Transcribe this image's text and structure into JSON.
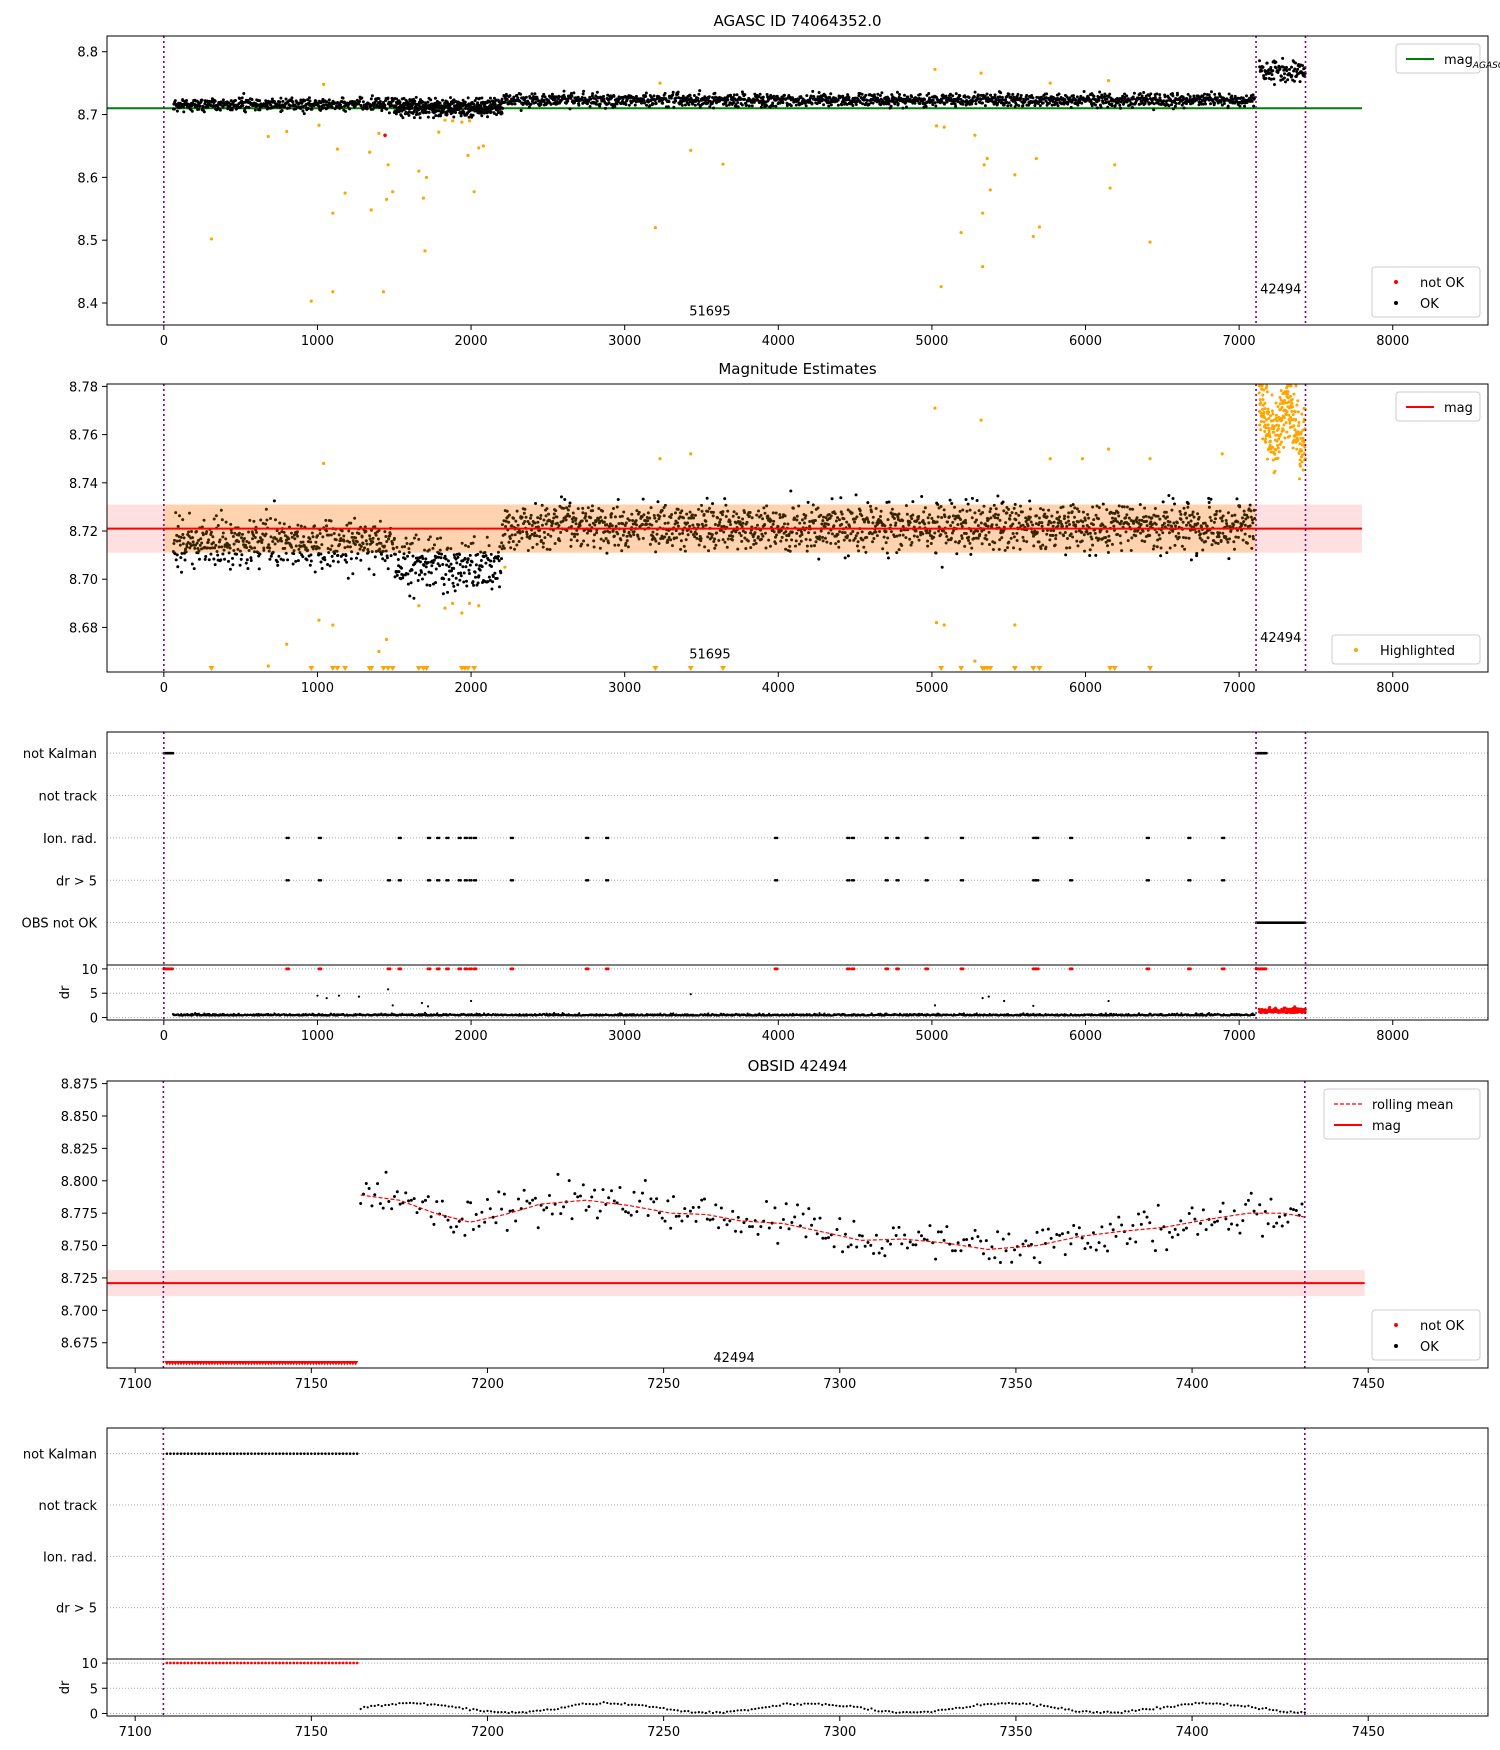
{
  "chart_data": [
    {
      "id": "p1",
      "type": "scatter",
      "title": "AGASC ID 74064352.0",
      "xlim": [
        -370,
        8620
      ],
      "ylim": [
        8.365,
        8.825
      ],
      "xticks": [
        0,
        1000,
        2000,
        3000,
        4000,
        5000,
        6000,
        7000,
        8000
      ],
      "yticks": [
        8.4,
        8.5,
        8.6,
        8.7,
        8.8
      ],
      "ytick_decimals": 1,
      "obs_boundaries": [
        0,
        7110,
        7432
      ],
      "obs_labels": [
        {
          "text": "51695",
          "x": 3555,
          "y": 8.38
        },
        {
          "text": "42494",
          "x": 7271,
          "y": 8.415
        }
      ],
      "mag_agasc": 8.71,
      "hline_xrange": [
        -370,
        7800
      ],
      "series": [
        {
          "name": "OK",
          "color": "#000000",
          "style": "dots"
        },
        {
          "name": "not OK",
          "color": "#ff0000",
          "style": "dots"
        }
      ],
      "highlighted_color": "#ffa500",
      "legends": [
        {
          "pos": "top-right",
          "items": [
            {
              "label": "mag",
              "sub": "AGASC",
              "kind": "line",
              "color": "#008000"
            }
          ]
        },
        {
          "pos": "bottom-right",
          "items": [
            {
              "label": "not OK",
              "kind": "dot",
              "color": "#ff0000"
            },
            {
              "label": "OK",
              "kind": "dot",
              "color": "#000000"
            }
          ]
        }
      ],
      "segments": [
        {
          "x0": 60,
          "x1": 2200,
          "mean": 8.716,
          "sd": 0.007
        },
        {
          "x0": 1500,
          "x1": 2200,
          "mean": 8.707,
          "sd": 0.007
        },
        {
          "x0": 2200,
          "x1": 7100,
          "mean": 8.723,
          "sd": 0.007
        },
        {
          "x0": 7130,
          "x1": 7432,
          "mean": 8.77,
          "sd": 0.012
        }
      ],
      "outliers": [
        [
          310,
          8.502
        ],
        [
          680,
          8.665
        ],
        [
          800,
          8.673
        ],
        [
          960,
          8.403
        ],
        [
          1010,
          8.683
        ],
        [
          1040,
          8.748
        ],
        [
          1100,
          8.418
        ],
        [
          1100,
          8.543
        ],
        [
          1130,
          8.645
        ],
        [
          1180,
          8.575
        ],
        [
          1340,
          8.64
        ],
        [
          1350,
          8.548
        ],
        [
          1400,
          8.67
        ],
        [
          1430,
          8.418
        ],
        [
          1450,
          8.565
        ],
        [
          1460,
          8.62
        ],
        [
          1490,
          8.577
        ],
        [
          1660,
          8.61
        ],
        [
          1690,
          8.567
        ],
        [
          1700,
          8.483
        ],
        [
          1710,
          8.6
        ],
        [
          1790,
          8.672
        ],
        [
          1830,
          8.691
        ],
        [
          1880,
          8.69
        ],
        [
          1940,
          8.688
        ],
        [
          1980,
          8.635
        ],
        [
          1990,
          8.69
        ],
        [
          2020,
          8.577
        ],
        [
          2050,
          8.647
        ],
        [
          2080,
          8.65
        ],
        [
          3200,
          8.52
        ],
        [
          3230,
          8.75
        ],
        [
          3430,
          8.643
        ],
        [
          3640,
          8.621
        ],
        [
          5020,
          8.772
        ],
        [
          5030,
          8.682
        ],
        [
          5060,
          8.426
        ],
        [
          5080,
          8.68
        ],
        [
          5190,
          8.512
        ],
        [
          5280,
          8.667
        ],
        [
          5320,
          8.766
        ],
        [
          5330,
          8.458
        ],
        [
          5330,
          8.543
        ],
        [
          5340,
          8.62
        ],
        [
          5360,
          8.63
        ],
        [
          5380,
          8.58
        ],
        [
          5540,
          8.604
        ],
        [
          5660,
          8.506
        ],
        [
          5680,
          8.63
        ],
        [
          5700,
          8.521
        ],
        [
          5770,
          8.75
        ],
        [
          6150,
          8.754
        ],
        [
          6160,
          8.583
        ],
        [
          6190,
          8.62
        ],
        [
          6420,
          8.497
        ]
      ],
      "notok_pts": [
        [
          1440,
          8.667
        ]
      ]
    },
    {
      "id": "p2",
      "type": "scatter",
      "title": "Magnitude Estimates",
      "xlim": [
        -370,
        8620
      ],
      "ylim": [
        8.6615,
        8.781
      ],
      "xticks": [
        0,
        1000,
        2000,
        3000,
        4000,
        5000,
        6000,
        7000,
        8000
      ],
      "yticks": [
        8.68,
        8.7,
        8.72,
        8.74,
        8.76,
        8.78
      ],
      "ytick_decimals": 2,
      "obs_boundaries": [
        0,
        7110,
        7432
      ],
      "obs_labels": [
        {
          "text": "51695",
          "x": 3555,
          "y": 8.667
        },
        {
          "text": "42494",
          "x": 7271,
          "y": 8.674
        }
      ],
      "mag": 8.721,
      "band_outer": [
        8.711,
        8.731
      ],
      "band_inner": [
        8.711,
        8.731
      ],
      "band_inner_xrange": [
        0,
        7110
      ],
      "hline_xrange": [
        -370,
        7800
      ],
      "series": [
        {
          "name": "OK",
          "color": "#000000",
          "style": "dots"
        }
      ],
      "highlighted_color": "#ffa500",
      "legends": [
        {
          "pos": "top-right",
          "items": [
            {
              "label": "mag",
              "kind": "line",
              "color": "#ff0000"
            }
          ]
        },
        {
          "pos": "bottom-right",
          "items": [
            {
              "label": "Highlighted",
              "kind": "dot",
              "color": "#ffa500"
            }
          ]
        }
      ],
      "segments": [
        {
          "x0": 60,
          "x1": 1500,
          "mean": 8.715,
          "sd": 0.007
        },
        {
          "x0": 1500,
          "x1": 2200,
          "mean": 8.706,
          "sd": 0.007
        },
        {
          "x0": 2200,
          "x1": 7100,
          "mean": 8.722,
          "sd": 0.007
        }
      ],
      "obs2_band": {
        "x0": 7130,
        "x1": 7432,
        "mean": 8.765,
        "sd": 0.01
      },
      "outliers": [
        [
          680,
          8.664
        ],
        [
          800,
          8.673
        ],
        [
          1010,
          8.683
        ],
        [
          1040,
          8.748
        ],
        [
          1100,
          8.681
        ],
        [
          1400,
          8.67
        ],
        [
          1450,
          8.675
        ],
        [
          1660,
          8.689
        ],
        [
          1830,
          8.688
        ],
        [
          1880,
          8.69
        ],
        [
          1940,
          8.686
        ],
        [
          1990,
          8.69
        ],
        [
          2050,
          8.689
        ],
        [
          2220,
          8.705
        ],
        [
          3230,
          8.75
        ],
        [
          3430,
          8.752
        ],
        [
          5020,
          8.771
        ],
        [
          5030,
          8.682
        ],
        [
          5080,
          8.681
        ],
        [
          5280,
          8.666
        ],
        [
          5320,
          8.766
        ],
        [
          5540,
          8.681
        ],
        [
          5770,
          8.75
        ],
        [
          5980,
          8.75
        ],
        [
          6150,
          8.754
        ],
        [
          6420,
          8.75
        ],
        [
          6890,
          8.752
        ]
      ],
      "lower_triangles": [
        310,
        960,
        1100,
        1130,
        1180,
        1340,
        1350,
        1430,
        1460,
        1490,
        1660,
        1690,
        1710,
        1940,
        1960,
        1980,
        2020,
        3200,
        3430,
        3640,
        5060,
        5190,
        5330,
        5340,
        5360,
        5380,
        5540,
        5660,
        5700,
        6160,
        6190,
        6420
      ]
    },
    {
      "id": "p3",
      "type": "scatter",
      "xlim": [
        -370,
        8620
      ],
      "xticks": [
        0,
        1000,
        2000,
        3000,
        4000,
        5000,
        6000,
        7000,
        8000
      ],
      "flag_labels": [
        "not Kalman",
        "not track",
        "Ion. rad.",
        "dr > 5",
        "OBS not OK"
      ],
      "dr_label": "dr",
      "dr_ylim": [
        -0.5,
        10.8
      ],
      "dr_yticks": [
        0,
        5,
        10
      ],
      "obs_boundaries": [
        0,
        7110,
        7432
      ],
      "flag_points": {
        "not Kalman": [
          [
            0,
            60
          ],
          [
            7110,
            7180
          ]
        ],
        "OBS not OK": [
          [
            7110,
            7432
          ]
        ]
      },
      "ion_rad_x": [
        800,
        1010,
        1530,
        1720,
        1780,
        1840,
        1920,
        1960,
        1990,
        2020,
        2260,
        2750,
        2880,
        3980,
        4450,
        4480,
        4700,
        4770,
        4960,
        5190,
        5660,
        5680,
        5900,
        6400,
        6670,
        6890
      ],
      "dr5_x": [
        800,
        1010,
        1460,
        1530,
        1720,
        1780,
        1840,
        1920,
        1960,
        1990,
        2020,
        2260,
        2750,
        2880,
        3980,
        4450,
        4480,
        4700,
        4770,
        4960,
        5190,
        5660,
        5680,
        5900,
        6400,
        6670,
        6890
      ],
      "dr_outliers": [
        [
          1000,
          4.5
        ],
        [
          1060,
          4.0
        ],
        [
          1140,
          4.5
        ],
        [
          1270,
          4.3
        ],
        [
          1460,
          5.8
        ],
        [
          1490,
          2.5
        ],
        [
          1680,
          3.0
        ],
        [
          1720,
          2.3
        ],
        [
          2000,
          3.4
        ],
        [
          3430,
          4.8
        ],
        [
          5020,
          2.5
        ],
        [
          5330,
          4.0
        ],
        [
          5370,
          4.3
        ],
        [
          5470,
          3.4
        ],
        [
          5660,
          2.4
        ],
        [
          6150,
          3.4
        ]
      ]
    },
    {
      "id": "p4",
      "type": "scatter",
      "title": "OBSID 42494",
      "xlim": [
        7092,
        7484
      ],
      "ylim": [
        8.6555,
        8.877
      ],
      "xticks": [
        7100,
        7150,
        7200,
        7250,
        7300,
        7350,
        7400,
        7450
      ],
      "yticks": [
        8.675,
        8.7,
        8.725,
        8.75,
        8.775,
        8.8,
        8.825,
        8.85,
        8.875
      ],
      "ytick_decimals": 3,
      "obs_boundaries": [
        7108,
        7432
      ],
      "obs_labels": [
        {
          "text": "42494",
          "x": 7270,
          "y": 8.66
        }
      ],
      "mag": 8.721,
      "band": [
        8.711,
        8.731
      ],
      "hline_xrange": [
        7092,
        7449
      ],
      "notok_xrange": [
        7109,
        7163
      ],
      "notok_y": 8.659,
      "rolling_mean": [
        [
          7164,
          8.789
        ],
        [
          7175,
          8.785
        ],
        [
          7185,
          8.775
        ],
        [
          7195,
          8.768
        ],
        [
          7205,
          8.774
        ],
        [
          7215,
          8.782
        ],
        [
          7228,
          8.785
        ],
        [
          7240,
          8.781
        ],
        [
          7252,
          8.775
        ],
        [
          7262,
          8.774
        ],
        [
          7272,
          8.769
        ],
        [
          7284,
          8.767
        ],
        [
          7296,
          8.76
        ],
        [
          7306,
          8.754
        ],
        [
          7318,
          8.755
        ],
        [
          7330,
          8.752
        ],
        [
          7342,
          8.747
        ],
        [
          7356,
          8.75
        ],
        [
          7368,
          8.757
        ],
        [
          7380,
          8.761
        ],
        [
          7392,
          8.764
        ],
        [
          7404,
          8.77
        ],
        [
          7416,
          8.775
        ],
        [
          7426,
          8.775
        ],
        [
          7432,
          8.772
        ]
      ],
      "legends": [
        {
          "pos": "top-right",
          "items": [
            {
              "label": "rolling mean",
              "kind": "dash",
              "color": "#ff0000"
            },
            {
              "label": "mag",
              "kind": "line",
              "color": "#ff0000"
            }
          ]
        },
        {
          "pos": "bottom-right",
          "items": [
            {
              "label": "not OK",
              "kind": "dot",
              "color": "#ff0000"
            },
            {
              "label": "OK",
              "kind": "dot",
              "color": "#000000"
            }
          ]
        }
      ]
    },
    {
      "id": "p5",
      "type": "scatter",
      "xlim": [
        7092,
        7484
      ],
      "xticks": [
        7100,
        7150,
        7200,
        7250,
        7300,
        7350,
        7400,
        7450
      ],
      "flag_labels": [
        "not Kalman",
        "not track",
        "Ion. rad.",
        "dr > 5"
      ],
      "dr_label": "dr",
      "dr_ylim": [
        -0.5,
        10.8
      ],
      "dr_yticks": [
        0,
        5,
        10
      ],
      "obs_boundaries": [
        7108,
        7432
      ],
      "flag_points": {
        "not Kalman": [
          [
            7109,
            7163
          ]
        ]
      },
      "notok_xrange": [
        7109,
        7163
      ]
    }
  ]
}
